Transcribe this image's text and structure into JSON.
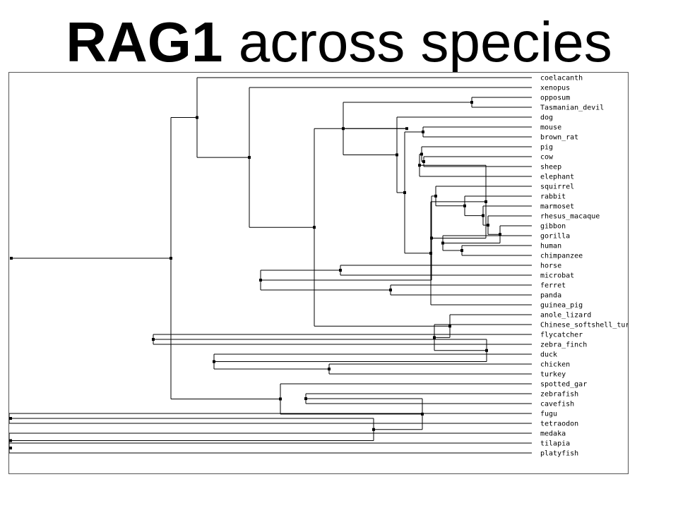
{
  "title": {
    "bold": "RAG1",
    "normal": " across species"
  },
  "colors": {
    "line": "#000000",
    "panel_border": "#555555",
    "background": "#ffffff"
  },
  "tree": {
    "leaves": [
      "coelacanth",
      "xenopus",
      "opposum",
      "Tasmanian_devil",
      "dog",
      "mouse",
      "brown_rat",
      "pig",
      "cow",
      "sheep",
      "elephant",
      "squirrel",
      "rabbit",
      "marmoset",
      "rhesus_macaque",
      "gibbon",
      "gorilla",
      "human",
      "chimpanzee",
      "horse",
      "microbat",
      "ferret",
      "panda",
      "guinea_pig",
      "anole_lizard",
      "Chinese_softshell_turtle",
      "flycatcher",
      "zebra_finch",
      "duck",
      "chicken",
      "turkey",
      "spotted_gar",
      "zebrafish",
      "cavefish",
      "fugu",
      "tetraodon",
      "medaka",
      "tilapia",
      "platyfish"
    ],
    "topology": [
      [
        [
          "coelacanth",
          [
            "xenopus",
            [
              [
                [
                  [
                    "opposum",
                    "Tasmanian_devil"
                  ],
                  [
                    "dog",
                    [
                      [
                        "mouse",
                        "brown_rat"
                      ],
                      [
                        [
                          [
                            [
                              "pig",
                              [
                                "cow",
                                "sheep"
                              ]
                            ],
                            "elephant"
                          ],
                          [
                            [
                              "squirrel",
                              [
                                "rabbit",
                                [
                                  "marmoset",
                                  [
                                    "rhesus_macaque",
                                    [
                                      "gibbon",
                                      [
                                        "gorilla",
                                        [
                                          "human",
                                          "chimpanzee"
                                        ]
                                      ]
                                    ]
                                  ]
                                ]
                              ]
                            ],
                            [
                              [
                                "horse",
                                "microbat"
                              ],
                              [
                                "ferret",
                                "panda"
                              ]
                            ]
                          ]
                        ],
                        "guinea_pig"
                      ]
                    ]
                  ]
                ]
              ],
              [
                "anole_lizard",
                [
                  "Chinese_softshell_turtle",
                  [
                    [
                      "flycatcher",
                      "zebra_finch"
                    ],
                    [
                      "duck",
                      [
                        "chicken",
                        "turkey"
                      ]
                    ]
                  ]
                ]
              ]
            ]
          ]
        ],
        [
          "spotted_gar",
          [
            [
              "zebrafish",
              "cavefish"
            ],
            [
              [
                "fugu",
                "tetraodon"
              ],
              [
                "medaka",
                [
                  "tilapia",
                  "platyfish"
                ]
              ]
            ]
          ]
        ]
      ]
    ]
  }
}
